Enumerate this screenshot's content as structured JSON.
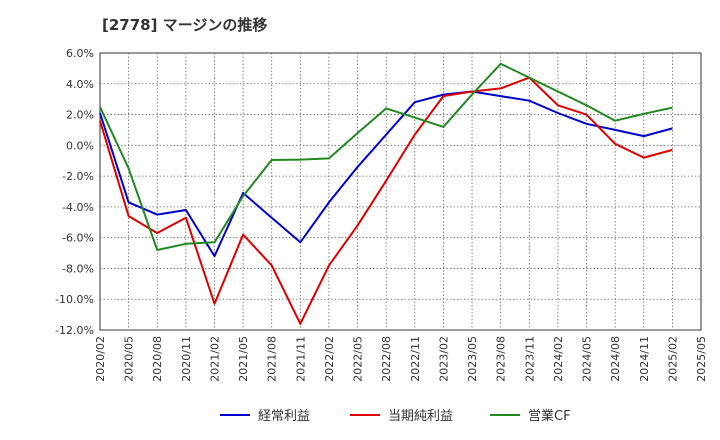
{
  "chart_data": {
    "type": "line",
    "title": "[2778]  マージンの推移",
    "xlabel": "",
    "ylabel": "",
    "x": [
      "2020/02",
      "2020/05",
      "2020/08",
      "2020/11",
      "2021/02",
      "2021/05",
      "2021/08",
      "2021/11",
      "2022/02",
      "2022/05",
      "2022/08",
      "2022/11",
      "2023/02",
      "2023/05",
      "2023/08",
      "2023/11",
      "2024/02",
      "2024/05",
      "2024/08",
      "2024/11",
      "2025/02",
      "2025/05"
    ],
    "ylim": [
      -12,
      6
    ],
    "yticks": [
      6,
      4,
      2,
      0,
      -2,
      -4,
      -6,
      -8,
      -10,
      -12
    ],
    "ytick_labels": [
      "6.0%",
      "4.0%",
      "2.0%",
      "0.0%",
      "-2.0%",
      "-4.0%",
      "-6.0%",
      "-8.0%",
      "-10.0%",
      "-12.0%"
    ],
    "grid": true,
    "legend_position": "bottom",
    "series": [
      {
        "name": "経常利益",
        "color": "#0000cc",
        "values": [
          2.1,
          -3.7,
          -4.5,
          -4.2,
          -7.2,
          -3.1,
          -4.7,
          -6.3,
          -3.7,
          -1.4,
          0.7,
          2.8,
          3.3,
          3.5,
          3.2,
          2.9,
          2.1,
          1.4,
          1.0,
          0.6,
          1.1,
          null
        ]
      },
      {
        "name": "当期純利益",
        "color": "#dd0000",
        "values": [
          1.6,
          -4.6,
          -5.7,
          -4.7,
          -10.3,
          -5.8,
          -7.8,
          -11.6,
          -7.8,
          -5.2,
          -2.3,
          0.7,
          3.2,
          3.5,
          3.7,
          4.4,
          2.6,
          2.0,
          0.1,
          -0.8,
          -0.3,
          null
        ]
      },
      {
        "name": "営業CF",
        "color": "#228822",
        "values": [
          2.5,
          -1.5,
          -6.8,
          -6.4,
          -6.3,
          -3.3,
          -0.95,
          -0.93,
          -0.85,
          0.8,
          2.4,
          1.8,
          1.2,
          3.3,
          5.3,
          4.4,
          3.5,
          2.6,
          1.6,
          2.05,
          2.45,
          null
        ]
      }
    ]
  }
}
